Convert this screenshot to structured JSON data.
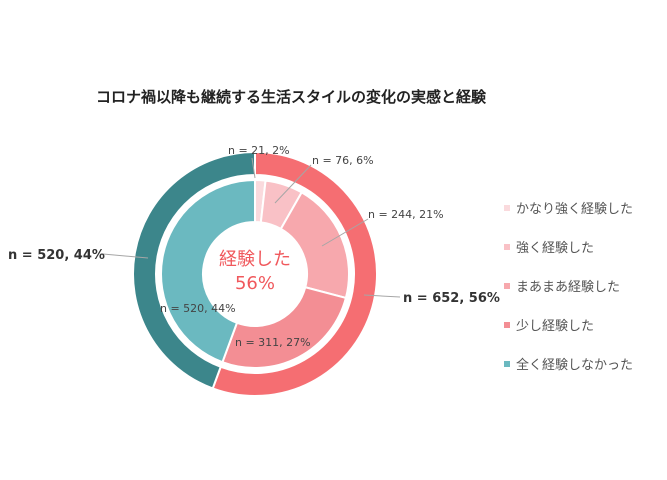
{
  "title": "コロナ禍以降も継続する生活スタイルの変化の実感と経験",
  "center_label": {
    "line1": "経験した",
    "line2": "56%"
  },
  "colors": {
    "strong_very": "#FADADD",
    "strong": "#F9C1C6",
    "somewhat": "#F7A8AD",
    "little": "#F38E94",
    "none_inner": "#6BB9C0",
    "experienced_outer": "#F56E72",
    "none_outer": "#3C868B",
    "center_text": "#F0585C"
  },
  "chart_data": {
    "type": "pie",
    "title": "コロナ禍以降も継続する生活スタイルの変化の実感と経験",
    "inner_ring": [
      {
        "label": "かなり強く経験した",
        "n": 21,
        "percent": 2,
        "text": "n = 21, 2%"
      },
      {
        "label": "強く経験した",
        "n": 76,
        "percent": 6,
        "text": "n = 76, 6%"
      },
      {
        "label": "まあまあ経験した",
        "n": 244,
        "percent": 21,
        "text": "n = 244, 21%"
      },
      {
        "label": "少し経験した",
        "n": 311,
        "percent": 27,
        "text": "n = 311, 27%"
      },
      {
        "label": "全く経験しなかった",
        "n": 520,
        "percent": 44,
        "text": "n = 520, 44%"
      }
    ],
    "outer_ring": [
      {
        "n": 652,
        "percent": 56,
        "text": "n = 652, 56%"
      },
      {
        "n": 520,
        "percent": 44,
        "text": "n = 520, 44%"
      }
    ],
    "legend": [
      {
        "label": "かなり強く経験した",
        "color": "#FADADD"
      },
      {
        "label": "強く経験した",
        "color": "#F9C1C6"
      },
      {
        "label": "まあまあ経験した",
        "color": "#F7A8AD"
      },
      {
        "label": "少し経験した",
        "color": "#F38E94"
      },
      {
        "label": "全く経験しなかった",
        "color": "#6BB9C0"
      }
    ]
  }
}
